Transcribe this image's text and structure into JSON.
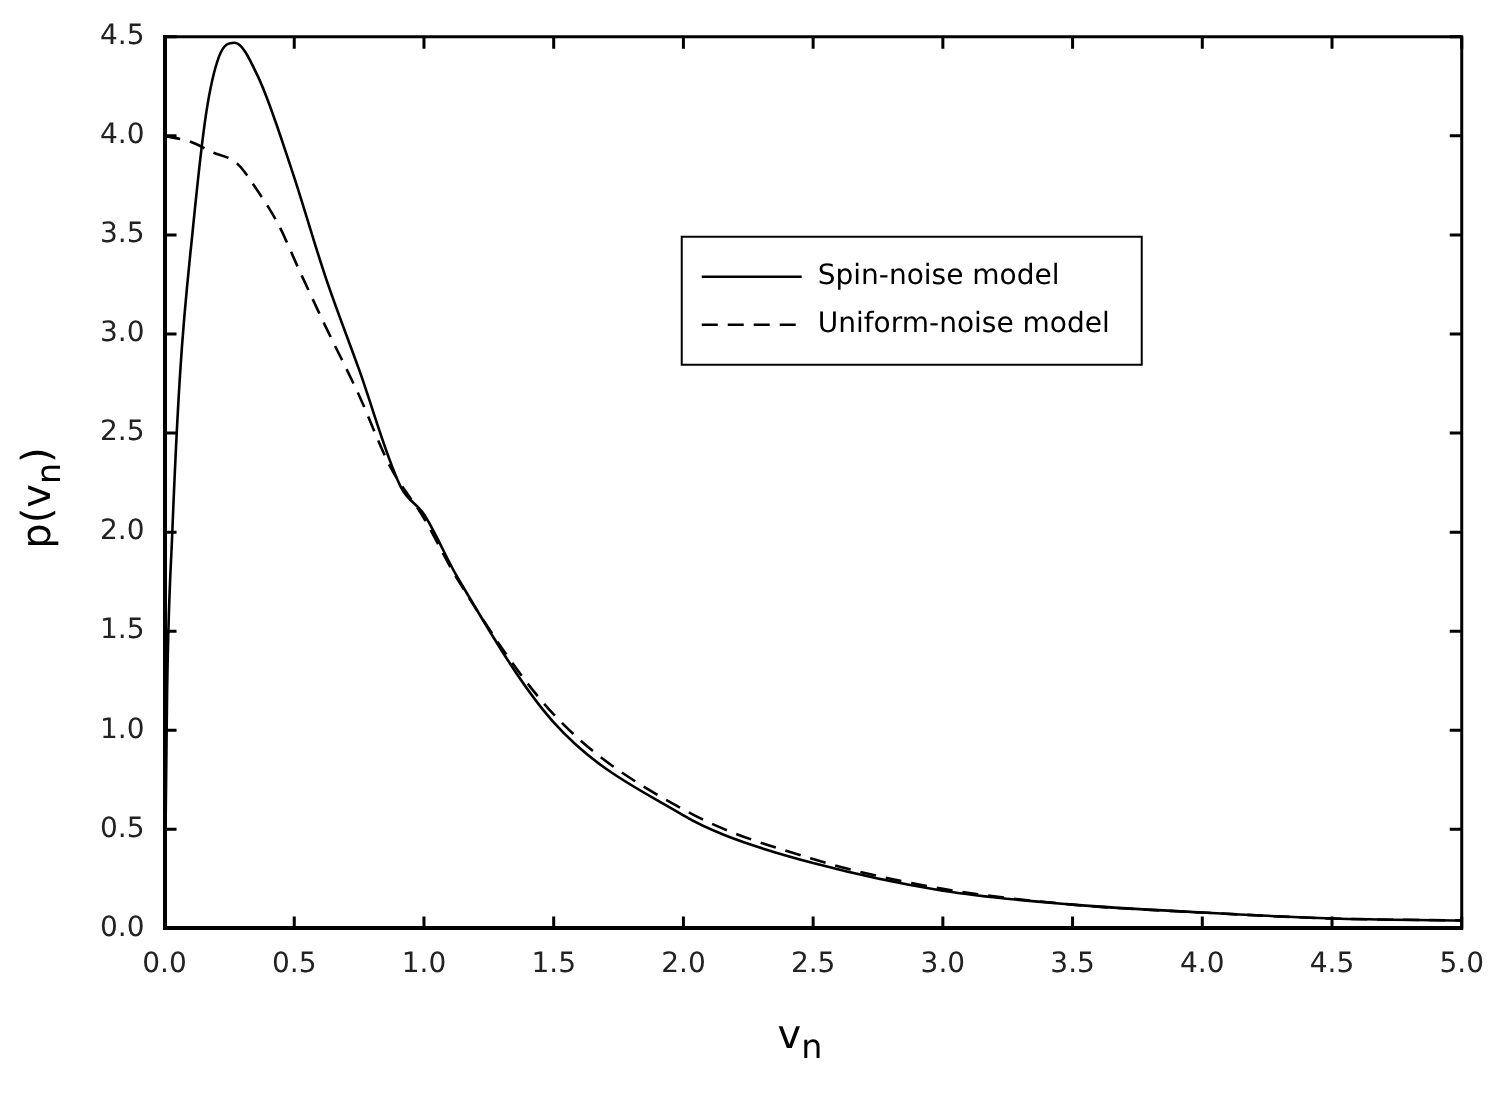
{
  "chart_data": {
    "type": "line",
    "xlabel": "v$_{n}$",
    "ylabel": "p(v$_{n}$)",
    "xlim": [
      0,
      5
    ],
    "ylim": [
      0,
      4.5
    ],
    "xticks": [
      {
        "value": 0,
        "label": "0.0"
      },
      {
        "value": 0.5,
        "label": "0.5"
      },
      {
        "value": 1,
        "label": "1.0"
      },
      {
        "value": 1.5,
        "label": "1.5"
      },
      {
        "value": 2,
        "label": "2.0"
      },
      {
        "value": 2.5,
        "label": "2.5"
      },
      {
        "value": 3,
        "label": "3.0"
      },
      {
        "value": 3.5,
        "label": "3.5"
      },
      {
        "value": 4,
        "label": "4.0"
      },
      {
        "value": 4.5,
        "label": "4.5"
      },
      {
        "value": 5,
        "label": "5.0"
      }
    ],
    "yticks": [
      {
        "value": 0,
        "label": "0.0"
      },
      {
        "value": 0.5,
        "label": "0.5"
      },
      {
        "value": 1,
        "label": "1.0"
      },
      {
        "value": 1.5,
        "label": "1.5"
      },
      {
        "value": 2,
        "label": "2.0"
      },
      {
        "value": 2.5,
        "label": "2.5"
      },
      {
        "value": 3,
        "label": "3.0"
      },
      {
        "value": 3.5,
        "label": "3.5"
      },
      {
        "value": 4,
        "label": "4.0"
      },
      {
        "value": 4.5,
        "label": "4.5"
      }
    ],
    "grid": false,
    "legend": "top right",
    "marker": "none",
    "series": [
      {
        "name": "Spin-noise model",
        "color": "#000000",
        "line_style": "solid",
        "x": [
          0,
          0.01,
          0.03,
          0.06,
          0.11,
          0.16,
          0.21,
          0.27,
          0.36,
          0.49,
          0.62,
          0.75,
          0.91,
          1.0,
          1.13,
          1.5,
          2.0,
          2.16,
          2.5,
          3.0,
          3.5,
          4.0,
          4.5,
          5.0
        ],
        "values": [
          0,
          1.2,
          2.0,
          2.8,
          3.54,
          4.11,
          4.4,
          4.47,
          4.3,
          3.83,
          3.29,
          2.82,
          2.23,
          2.09,
          1.77,
          1.04,
          0.57,
          0.47,
          0.33,
          0.19,
          0.12,
          0.08,
          0.05,
          0.04
        ]
      },
      {
        "name": "Uniform-noise model",
        "color": "#000000",
        "line_style": "dashed",
        "x": [
          0,
          0.1,
          0.18,
          0.28,
          0.36,
          0.44,
          0.52,
          0.62,
          0.75,
          0.87,
          1.0,
          1.13,
          1.5,
          2.0,
          2.5,
          3.0,
          3.5,
          4.0,
          4.5,
          5.0
        ],
        "values": [
          4.0,
          3.97,
          3.92,
          3.86,
          3.72,
          3.55,
          3.32,
          3.04,
          2.69,
          2.33,
          2.07,
          1.76,
          1.08,
          0.6,
          0.35,
          0.2,
          0.12,
          0.08,
          0.05,
          0.04
        ]
      }
    ]
  }
}
